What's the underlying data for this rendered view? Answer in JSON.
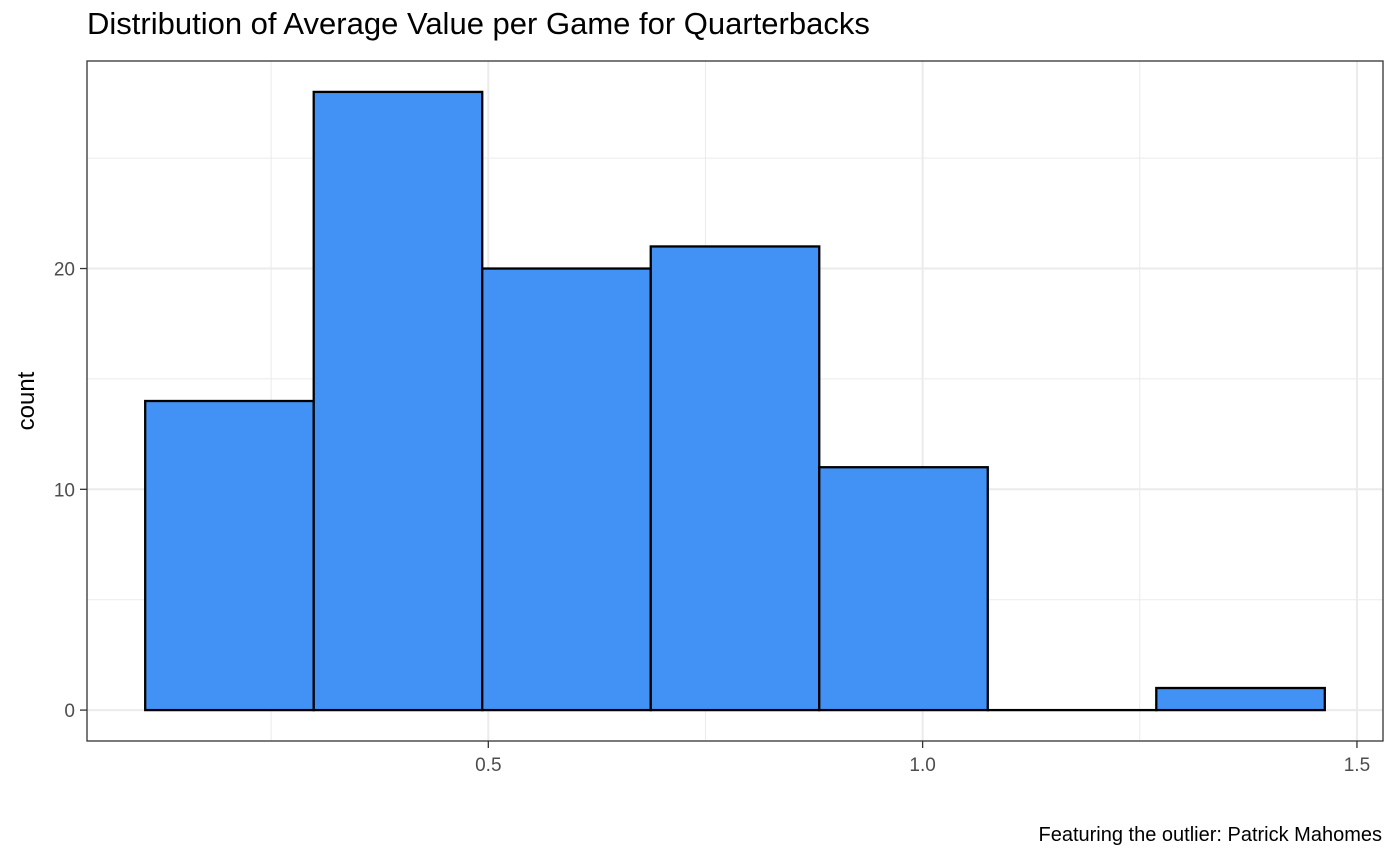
{
  "title": "Distribution of Average Value per Game for Quarterbacks",
  "caption": "Featuring the outlier: Patrick Mahomes",
  "colors": {
    "bar_fill": "#4292F5",
    "bar_stroke": "#000000",
    "grid": "#EBEBEB",
    "panel_border": "#333333",
    "tick_label": "#4D4D4D"
  },
  "chart_data": {
    "type": "bar",
    "subtype": "histogram",
    "title": "Distribution of Average Value per Game for Quarterbacks",
    "caption": "Featuring the outlier: Patrick Mahomes",
    "xlabel": "",
    "ylabel": "count",
    "bin_width": 0.194,
    "bins": [
      {
        "start": 0.105,
        "end": 0.299,
        "count": 14
      },
      {
        "start": 0.299,
        "end": 0.493,
        "count": 28
      },
      {
        "start": 0.493,
        "end": 0.687,
        "count": 20
      },
      {
        "start": 0.687,
        "end": 0.881,
        "count": 21
      },
      {
        "start": 0.881,
        "end": 1.075,
        "count": 11
      },
      {
        "start": 1.075,
        "end": 1.269,
        "count": 0
      },
      {
        "start": 1.269,
        "end": 1.463,
        "count": 1
      }
    ],
    "xlim": [
      0.038,
      1.53
    ],
    "ylim": [
      -1.4,
      29.4
    ],
    "x_ticks": [
      0.5,
      1.0,
      1.5
    ],
    "x_tick_labels": [
      "0.5",
      "1.0",
      "1.5"
    ],
    "x_minor_ticks": [
      0.25,
      0.75,
      1.25
    ],
    "y_ticks": [
      0,
      10,
      20
    ],
    "y_tick_labels": [
      "0",
      "10",
      "20"
    ],
    "y_minor_ticks": [
      5,
      15,
      25
    ],
    "grid": true,
    "legend": "none"
  }
}
